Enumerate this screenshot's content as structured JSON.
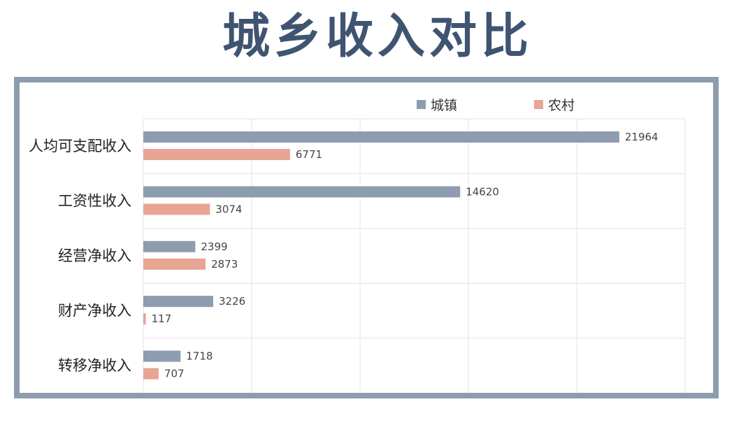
{
  "title": "城乡收入对比",
  "colors": {
    "title": "#3f5470",
    "frame": "#8d9caf",
    "urban": "#8d9caf",
    "rural": "#e8a593",
    "grid": "#e3e3e3"
  },
  "chart_data": {
    "type": "bar",
    "orientation": "horizontal",
    "title": "",
    "xlabel": "",
    "ylabel": "",
    "legend_position": "top-right",
    "grid": true,
    "xlim": [
      0,
      25000
    ],
    "categories": [
      "人均可支配收入",
      "工资性收入",
      "经营净收入",
      "财产净收入",
      "转移净收入"
    ],
    "series": [
      {
        "name": "城镇",
        "color": "#8d9caf",
        "values": [
          21964,
          14620,
          2399,
          3226,
          1718
        ]
      },
      {
        "name": "农村",
        "color": "#e8a593",
        "values": [
          6771,
          3074,
          2873,
          117,
          707
        ]
      }
    ]
  }
}
